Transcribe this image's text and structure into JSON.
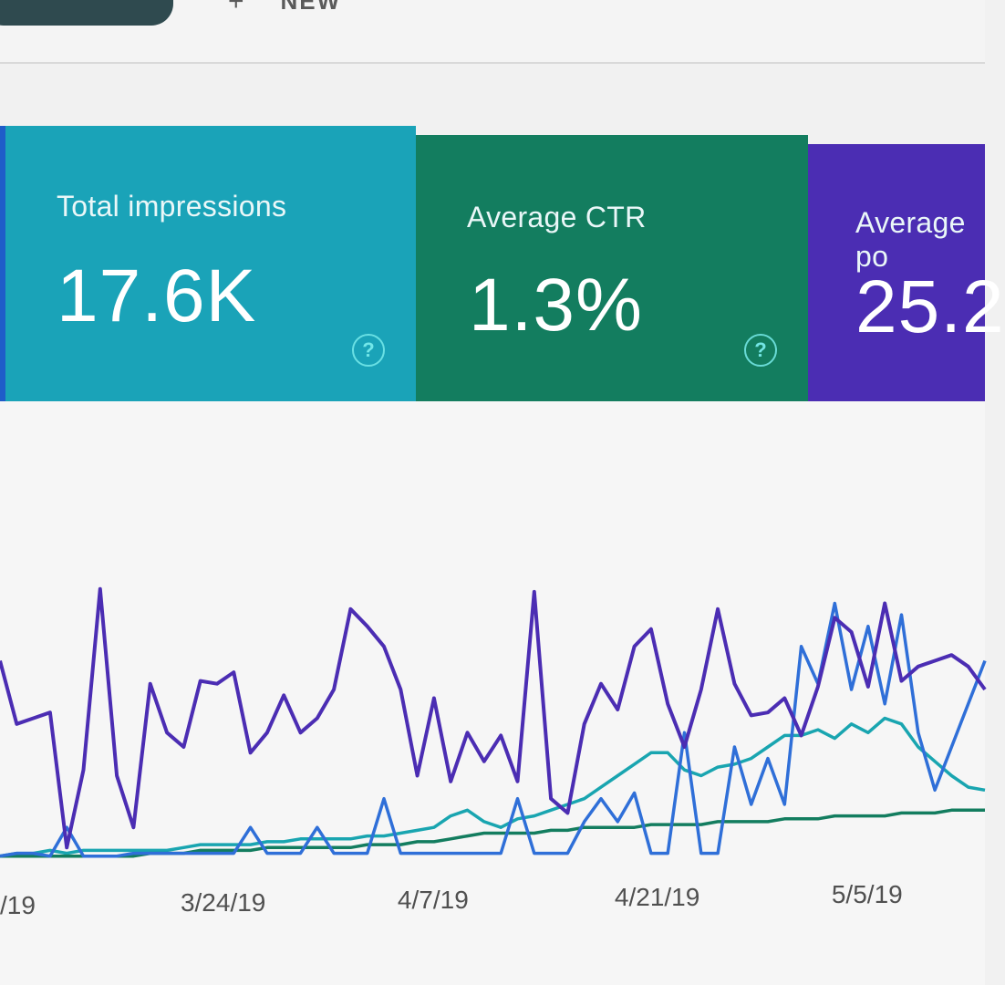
{
  "topbar": {
    "pill_color": "#2f4a4f",
    "plus_glyph": "+",
    "new_label": "NEW"
  },
  "cards": [
    {
      "name": "total-impressions",
      "label": "Total impressions",
      "value": "17.6K",
      "color": "#1aa3b8",
      "help": "?"
    },
    {
      "name": "average-ctr",
      "label": "Average CTR",
      "value": "1.3%",
      "color": "#137d5f",
      "help": "?"
    },
    {
      "name": "average-position",
      "label": "Average po",
      "value": "25.2",
      "color": "#4b2db3",
      "help": ""
    }
  ],
  "chart_data": {
    "type": "line",
    "x_tick_labels": [
      "/19",
      "3/24/19",
      "4/7/19",
      "4/21/19",
      "5/5/19"
    ],
    "x_tick_index": [
      0,
      13,
      26,
      39,
      52
    ],
    "ylim": [
      0,
      100
    ],
    "grid": false,
    "series": [
      {
        "name": "",
        "color": "#4b2db3",
        "values": [
          70,
          48,
          50,
          52,
          5,
          32,
          95,
          30,
          12,
          62,
          45,
          40,
          63,
          62,
          66,
          38,
          45,
          58,
          45,
          50,
          60,
          88,
          82,
          75,
          60,
          30,
          57,
          28,
          45,
          35,
          44,
          28,
          94,
          22,
          17,
          48,
          62,
          53,
          75,
          81,
          55,
          40,
          60,
          88,
          62,
          51,
          52,
          57,
          44,
          61,
          85,
          80,
          61,
          90,
          63,
          68,
          70,
          72,
          68,
          60
        ]
      },
      {
        "name": "",
        "color": "#19a5b0",
        "values": [
          2,
          3,
          3,
          4,
          3,
          4,
          4,
          4,
          4,
          4,
          4,
          5,
          6,
          6,
          6,
          6,
          7,
          7,
          8,
          8,
          8,
          8,
          9,
          9,
          10,
          11,
          12,
          16,
          18,
          14,
          12,
          15,
          16,
          18,
          20,
          22,
          26,
          30,
          34,
          38,
          38,
          32,
          30,
          33,
          34,
          36,
          40,
          44,
          44,
          46,
          43,
          48,
          45,
          50,
          48,
          40,
          35,
          30,
          26,
          25
        ]
      },
      {
        "name": "",
        "color": "#137d5f",
        "values": [
          2,
          2,
          2,
          2,
          2,
          2,
          2,
          2,
          2,
          3,
          3,
          3,
          4,
          4,
          4,
          4,
          5,
          5,
          5,
          5,
          5,
          5,
          6,
          6,
          6,
          7,
          7,
          8,
          9,
          10,
          10,
          10,
          10,
          11,
          11,
          12,
          12,
          12,
          12,
          13,
          13,
          13,
          13,
          14,
          14,
          14,
          14,
          15,
          15,
          15,
          16,
          16,
          16,
          16,
          17,
          17,
          17,
          18,
          18,
          18
        ]
      },
      {
        "name": "",
        "color": "#2f6fd8",
        "values": [
          2,
          3,
          3,
          2,
          12,
          2,
          2,
          2,
          3,
          3,
          3,
          3,
          3,
          3,
          3,
          12,
          3,
          3,
          3,
          12,
          3,
          3,
          3,
          22,
          3,
          3,
          3,
          3,
          3,
          3,
          3,
          22,
          3,
          3,
          3,
          14,
          22,
          14,
          24,
          3,
          3,
          45,
          3,
          3,
          40,
          20,
          36,
          20,
          75,
          62,
          90,
          60,
          82,
          55,
          86,
          45,
          25,
          40,
          55,
          70
        ]
      }
    ]
  }
}
